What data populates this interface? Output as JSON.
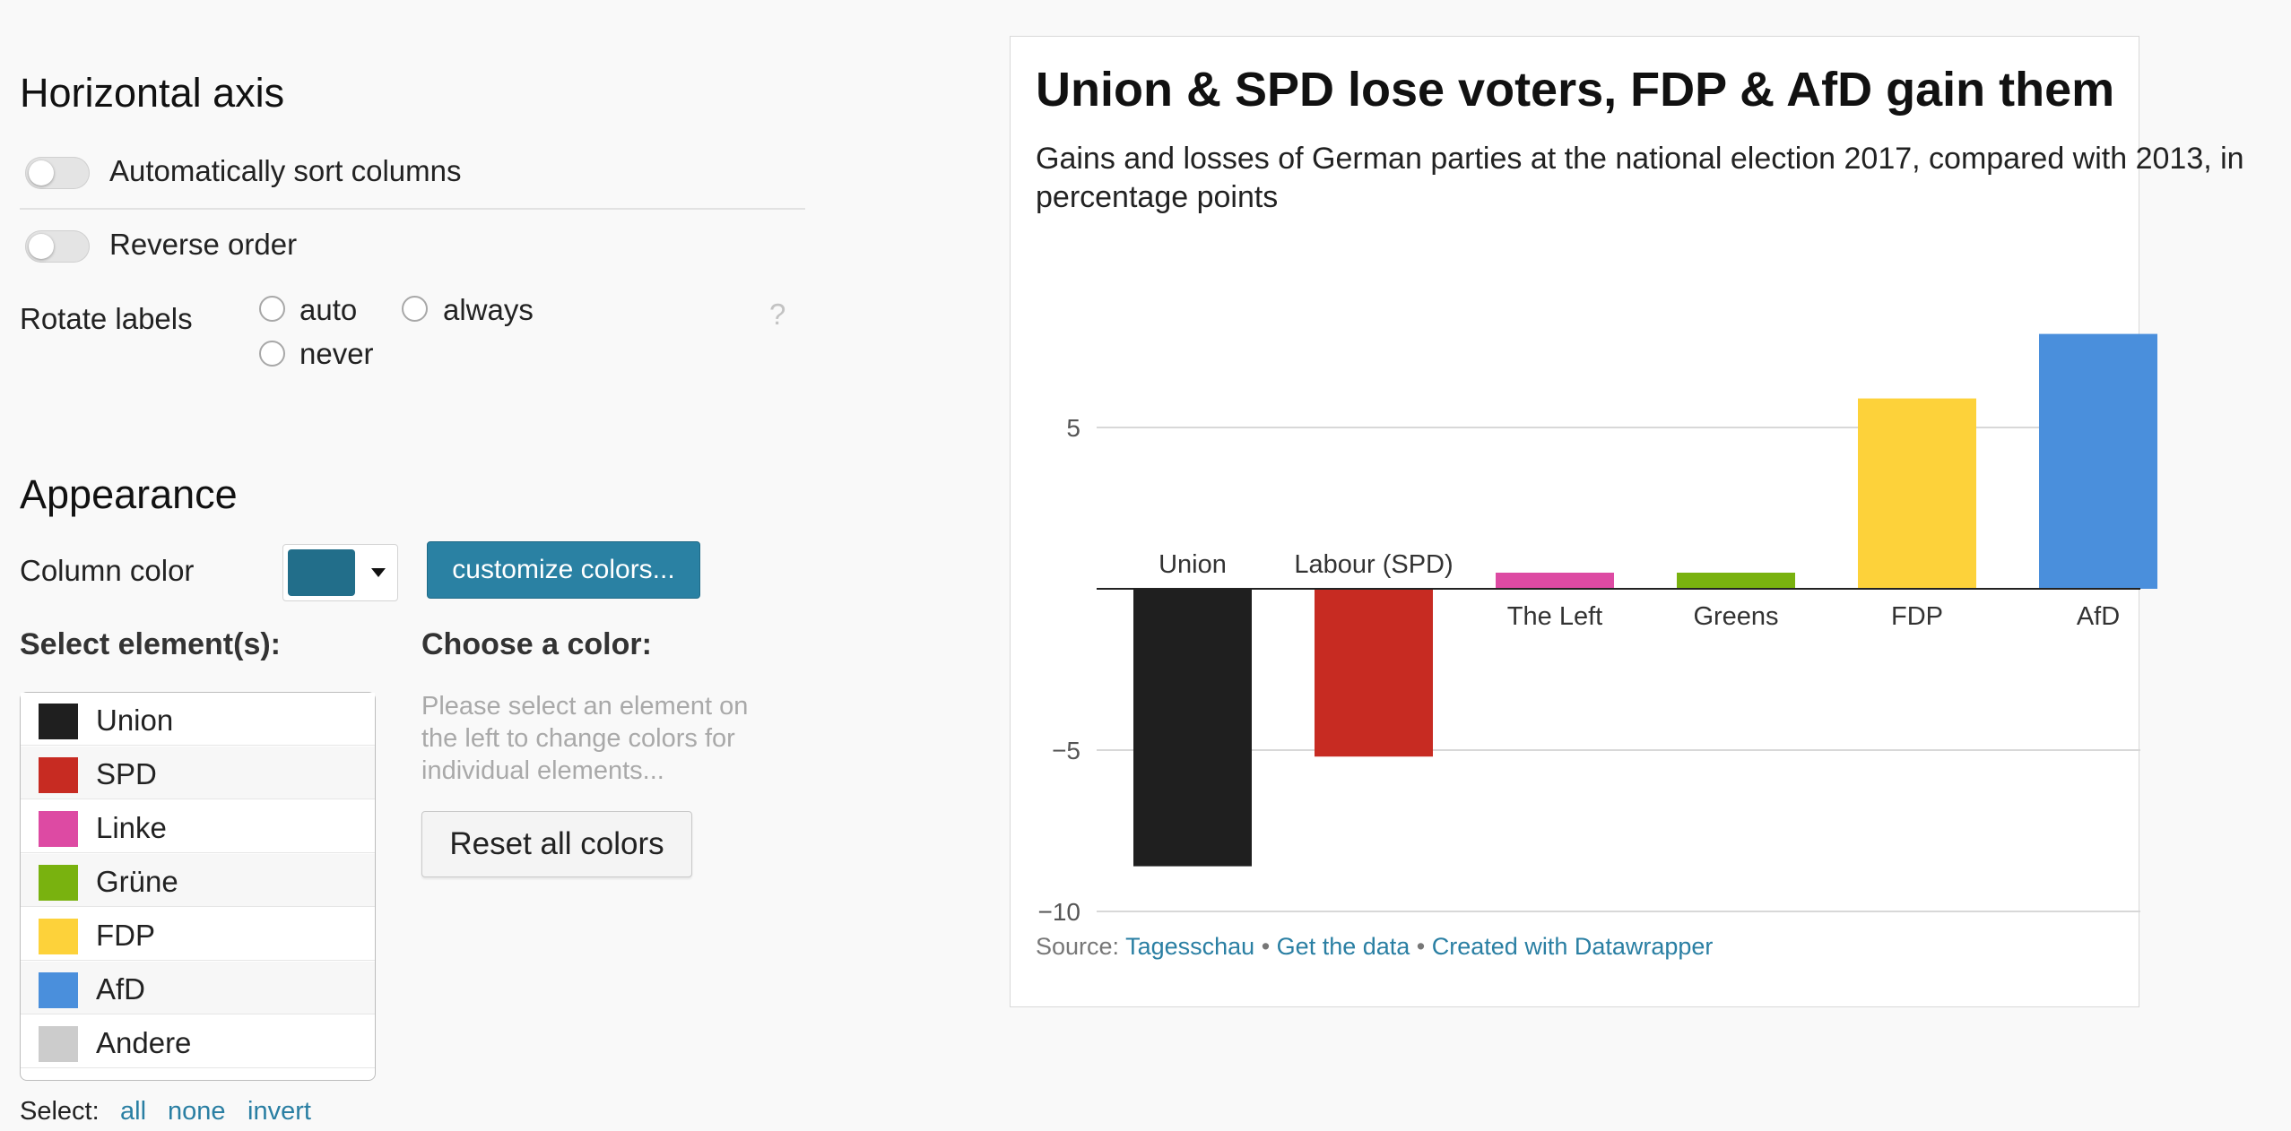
{
  "sidebar": {
    "horizontal_axis": {
      "title": "Horizontal axis",
      "auto_sort_label": "Automatically sort columns",
      "reverse_label": "Reverse order",
      "rotate_label": "Rotate labels",
      "rotate_options": [
        "auto",
        "always",
        "never"
      ],
      "help": "?"
    },
    "appearance": {
      "title": "Appearance",
      "column_color_label": "Column color",
      "column_color": "#226e8a",
      "customize_button": "customize colors...",
      "select_heading": "Select element(s):",
      "choose_heading": "Choose a color:",
      "hint": "Please select an element on the left to change colors for individual elements...",
      "reset_button": "Reset all colors",
      "elements": [
        {
          "name": "Union",
          "color": "#1f1f1f"
        },
        {
          "name": "SPD",
          "color": "#c72b22"
        },
        {
          "name": "Linke",
          "color": "#dd4aa3"
        },
        {
          "name": "Grüne",
          "color": "#79b20f"
        },
        {
          "name": "FDP",
          "color": "#fdd23a"
        },
        {
          "name": "AfD",
          "color": "#4a8fdc"
        },
        {
          "name": "Andere",
          "color": "#cccccc"
        }
      ],
      "select_label": "Select:",
      "select_all": "all",
      "select_none": "none",
      "select_invert": "invert"
    }
  },
  "chart_data": {
    "type": "bar",
    "title": "Union & SPD lose voters, FDP & AfD gain them",
    "subtitle": "Gains and losses of German parties at the national election 2017, compared with 2013, in percentage points",
    "categories": [
      "Union",
      "Labour (SPD)",
      "The Left",
      "Greens",
      "FDP",
      "AfD"
    ],
    "values": [
      -8.6,
      -5.2,
      0.5,
      0.5,
      5.9,
      7.9
    ],
    "colors": [
      "#1f1f1f",
      "#c72b22",
      "#dd4aa3",
      "#79b20f",
      "#fdd23a",
      "#4a8fdc"
    ],
    "yticks": [
      5,
      -5,
      -10
    ],
    "ytick_labels": [
      "5",
      "−5",
      "−10"
    ],
    "ylim": [
      -10,
      8
    ],
    "grid": true,
    "source_label": "Source:",
    "source_name": "Tagesschau",
    "get_data": "Get the data",
    "created_with": "Created with Datawrapper",
    "separator": "•"
  }
}
